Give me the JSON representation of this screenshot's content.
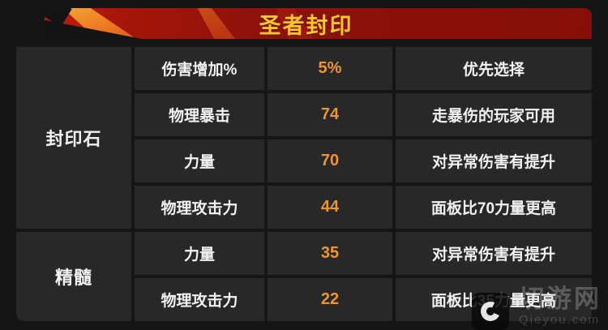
{
  "header": {
    "title": "圣者封印"
  },
  "table": {
    "groups": [
      {
        "label": "封印石",
        "rows": [
          {
            "attr": "伤害增加%",
            "value": "5%",
            "note": "优先选择"
          },
          {
            "attr": "物理暴击",
            "value": "74",
            "note": "走暴伤的玩家可用"
          },
          {
            "attr": "力量",
            "value": "70",
            "note": "对异常伤害有提升"
          },
          {
            "attr": "物理攻击力",
            "value": "44",
            "note": "面板比70力量更高"
          }
        ]
      },
      {
        "label": "精髓",
        "rows": [
          {
            "attr": "力量",
            "value": "35",
            "note": "对异常伤害有提升"
          },
          {
            "attr": "物理攻击力",
            "value": "22",
            "note": "面板比35力量更高"
          }
        ]
      }
    ]
  },
  "watermark": {
    "site_name": "切游网",
    "site_url": "Qieyou.com"
  },
  "colors": {
    "page_bg": "#151515",
    "cell_bg": "#282828",
    "header_red": "#8e110b",
    "flame_orange": "#ef8326",
    "title_gold": "#ffc62e",
    "value_orange": "#ee9430",
    "text_white": "#f2f2f2"
  },
  "chart_data": {
    "type": "table",
    "title": "圣者封印",
    "rows": [
      [
        "封印石",
        "伤害增加%",
        "5%",
        "优先选择"
      ],
      [
        "封印石",
        "物理暴击",
        "74",
        "走暴伤的玩家可用"
      ],
      [
        "封印石",
        "力量",
        "70",
        "对异常伤害有提升"
      ],
      [
        "封印石",
        "物理攻击力",
        "44",
        "面板比70力量更高"
      ],
      [
        "精髓",
        "力量",
        "35",
        "对异常伤害有提升"
      ],
      [
        "精髓",
        "物理攻击力",
        "22",
        "面板比35力量更高"
      ]
    ]
  }
}
